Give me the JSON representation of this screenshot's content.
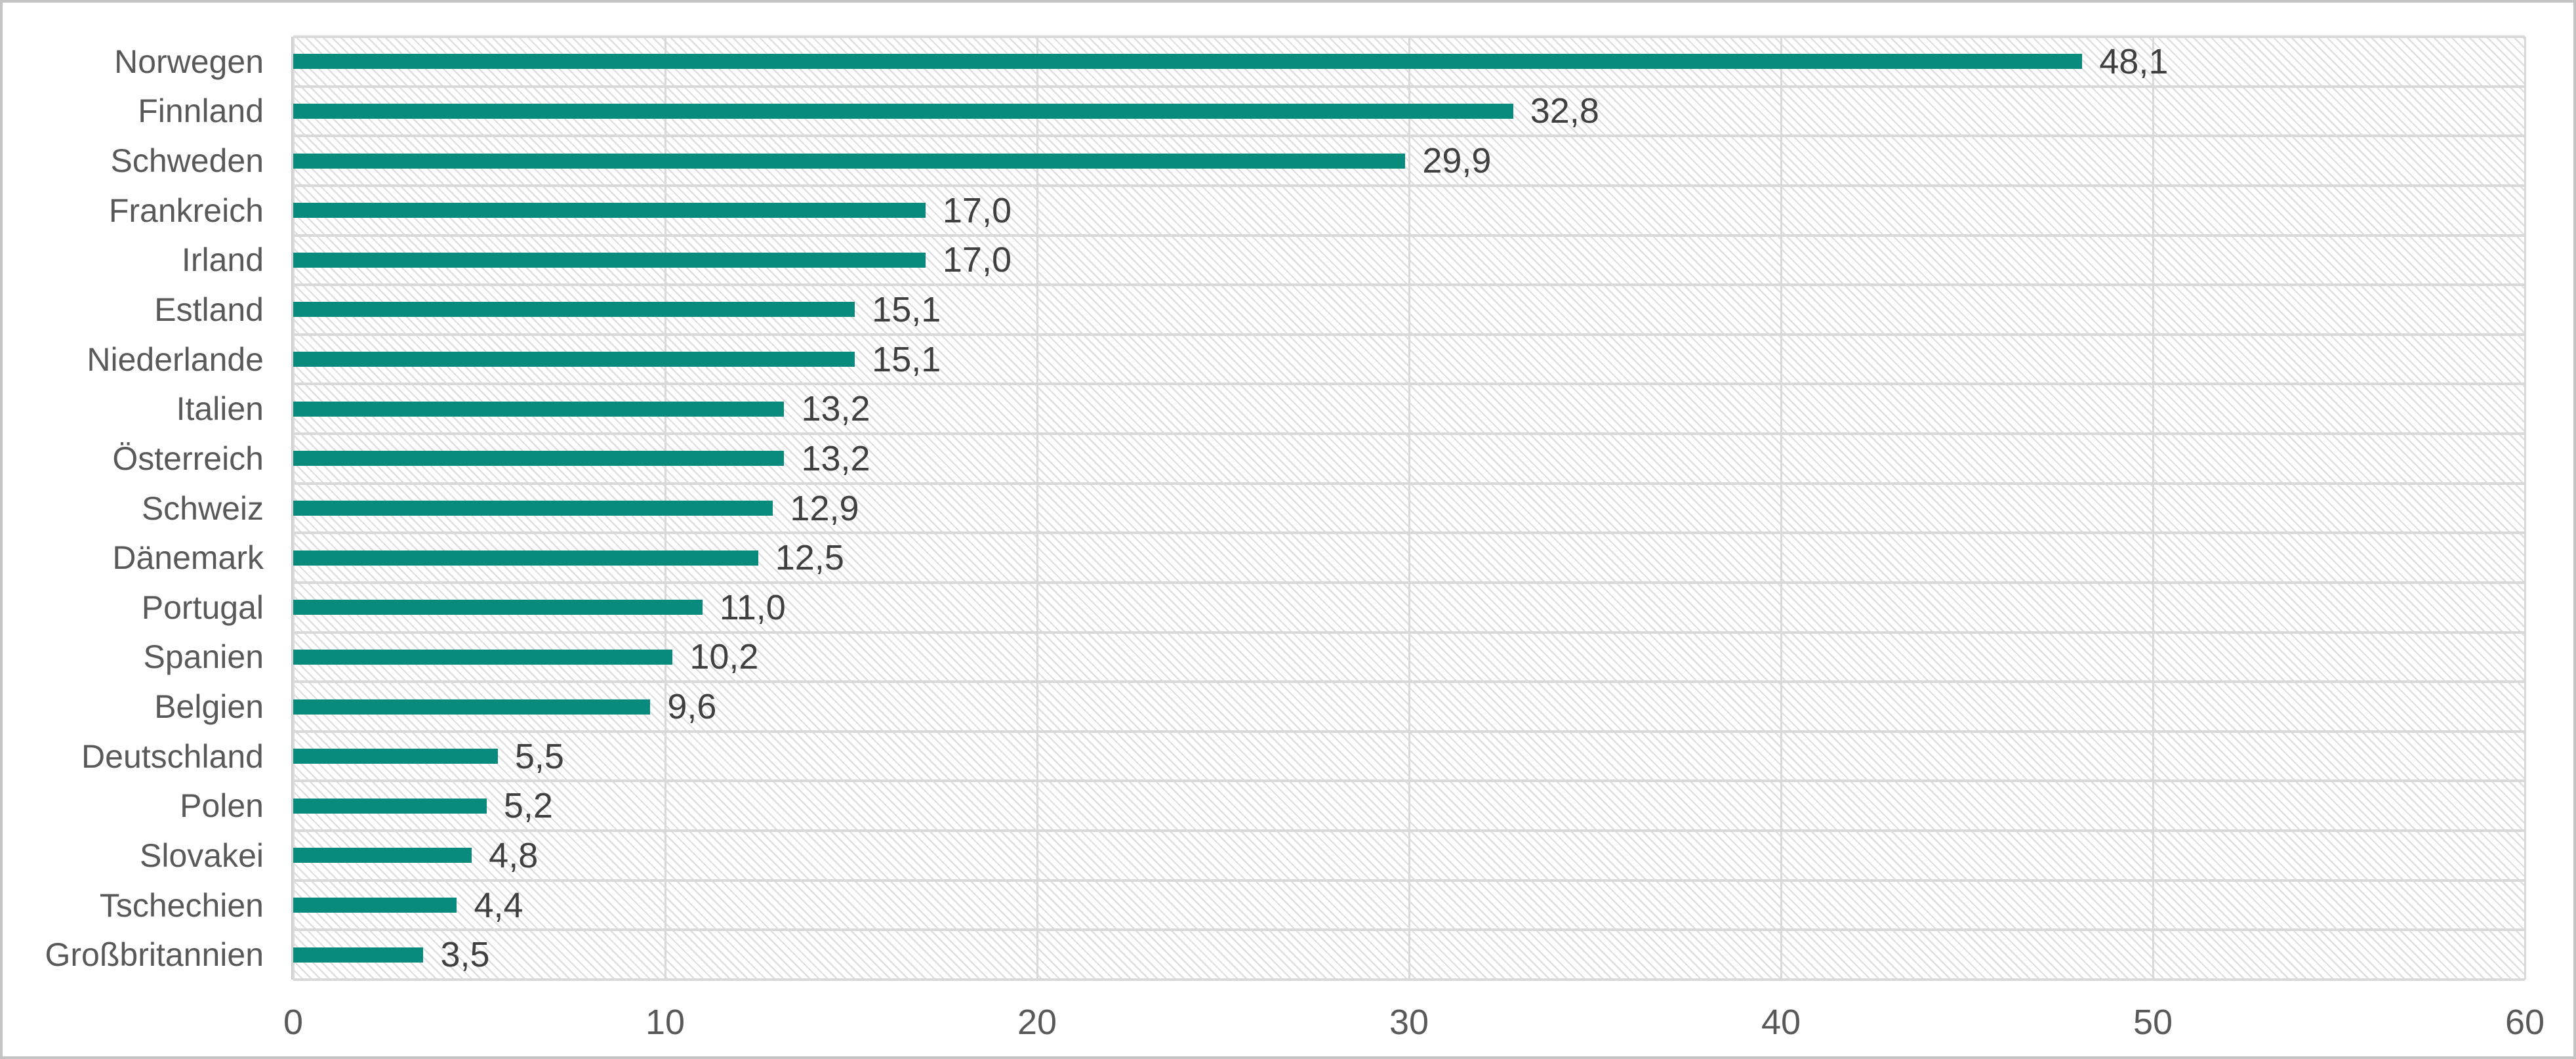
{
  "chart_data": {
    "type": "bar",
    "orientation": "horizontal",
    "title": "",
    "xlabel": "",
    "ylabel": "",
    "categories": [
      "Norwegen",
      "Finnland",
      "Schweden",
      "Frankreich",
      "Irland",
      "Estland",
      "Niederlande",
      "Italien",
      "Österreich",
      "Schweiz",
      "Dänemark",
      "Portugal",
      "Spanien",
      "Belgien",
      "Deutschland",
      "Polen",
      "Slovakei",
      "Tschechien",
      "Großbritannien"
    ],
    "values": [
      48.1,
      32.8,
      29.9,
      17.0,
      17.0,
      15.1,
      15.1,
      13.2,
      13.2,
      12.9,
      12.5,
      11.0,
      10.2,
      9.6,
      5.5,
      5.2,
      4.8,
      4.4,
      3.5
    ],
    "value_labels": [
      "48,1",
      "32,8",
      "29,9",
      "17,0",
      "17,0",
      "15,1",
      "15,1",
      "13,2",
      "13,2",
      "12,9",
      "12,5",
      "11,0",
      "10,2",
      "9,6",
      "5,5",
      "5,2",
      "4,8",
      "4,4",
      "3,5"
    ],
    "x_ticks": [
      0,
      10,
      20,
      30,
      40,
      50,
      60
    ],
    "x_tick_labels": [
      "0",
      "10",
      "20",
      "30",
      "40",
      "50",
      "60"
    ],
    "xlim": [
      0,
      60
    ],
    "grid": true,
    "legend_position": "none",
    "plot_fill_pattern": "light-diagonal-hatch",
    "colors": {
      "bar": "#088b7d",
      "category_text": "#595959",
      "value_text": "#404040",
      "axis_text": "#595959",
      "gridline": "#d9d9d9",
      "hatch_line": "#dedede",
      "frame": "#c4c4c4"
    }
  }
}
